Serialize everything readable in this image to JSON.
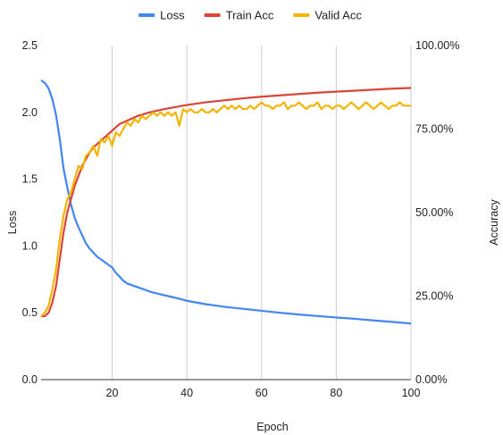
{
  "chart_data": {
    "type": "line",
    "title": "",
    "xlabel": "Epoch",
    "ylabel": "Loss",
    "y2label": "Accuracy",
    "xlim": [
      1,
      100
    ],
    "ylim": [
      0,
      2.5
    ],
    "y2lim": [
      0,
      100
    ],
    "x_ticks": [
      20,
      40,
      60,
      80,
      100
    ],
    "x_tick_labels": [
      "20",
      "40",
      "60",
      "80",
      "100"
    ],
    "y_ticks": [
      0.0,
      0.5,
      1.0,
      1.5,
      2.0,
      2.5
    ],
    "y_tick_labels": [
      "0.0",
      "0.5",
      "1.0",
      "1.5",
      "2.0",
      "2.5"
    ],
    "y2_ticks": [
      0,
      25,
      50,
      75,
      100
    ],
    "y2_tick_labels": [
      "0.00%",
      "25.00%",
      "50.00%",
      "75.00%",
      "100.00%"
    ],
    "grid": "vertical",
    "legend_position": "top",
    "series": [
      {
        "name": "Loss",
        "axis": "left",
        "color": "#4285F4",
        "points": [
          [
            1,
            2.24
          ],
          [
            2,
            2.22
          ],
          [
            3,
            2.18
          ],
          [
            4,
            2.1
          ],
          [
            5,
            1.98
          ],
          [
            6,
            1.8
          ],
          [
            7,
            1.58
          ],
          [
            8,
            1.44
          ],
          [
            9,
            1.31
          ],
          [
            10,
            1.21
          ],
          [
            11,
            1.14
          ],
          [
            12,
            1.08
          ],
          [
            13,
            1.02
          ],
          [
            14,
            0.98
          ],
          [
            15,
            0.95
          ],
          [
            16,
            0.92
          ],
          [
            17,
            0.9
          ],
          [
            18,
            0.88
          ],
          [
            19,
            0.86
          ],
          [
            20,
            0.84
          ],
          [
            21,
            0.8
          ],
          [
            22,
            0.77
          ],
          [
            23,
            0.74
          ],
          [
            24,
            0.72
          ],
          [
            25,
            0.71
          ],
          [
            26,
            0.7
          ],
          [
            27,
            0.69
          ],
          [
            28,
            0.68
          ],
          [
            30,
            0.66
          ],
          [
            32,
            0.645
          ],
          [
            35,
            0.625
          ],
          [
            38,
            0.605
          ],
          [
            40,
            0.59
          ],
          [
            45,
            0.565
          ],
          [
            50,
            0.545
          ],
          [
            55,
            0.53
          ],
          [
            60,
            0.515
          ],
          [
            65,
            0.5
          ],
          [
            70,
            0.487
          ],
          [
            75,
            0.476
          ],
          [
            80,
            0.465
          ],
          [
            85,
            0.455
          ],
          [
            90,
            0.443
          ],
          [
            95,
            0.432
          ],
          [
            100,
            0.42
          ]
        ]
      },
      {
        "name": "Train Acc",
        "axis": "right",
        "color": "#DB4437",
        "points": [
          [
            1,
            19
          ],
          [
            2,
            19
          ],
          [
            3,
            20
          ],
          [
            4,
            23
          ],
          [
            5,
            28
          ],
          [
            6,
            36
          ],
          [
            7,
            44
          ],
          [
            8,
            50
          ],
          [
            9,
            54
          ],
          [
            10,
            58
          ],
          [
            11,
            61
          ],
          [
            12,
            64
          ],
          [
            13,
            66
          ],
          [
            14,
            68
          ],
          [
            15,
            69.5
          ],
          [
            16,
            70.5
          ],
          [
            17,
            71.5
          ],
          [
            18,
            72.5
          ],
          [
            19,
            73.5
          ],
          [
            20,
            74.5
          ],
          [
            21,
            75.5
          ],
          [
            22,
            76.5
          ],
          [
            23,
            77
          ],
          [
            24,
            77.5
          ],
          [
            25,
            78
          ],
          [
            26,
            78.5
          ],
          [
            27,
            79
          ],
          [
            28,
            79.3
          ],
          [
            30,
            80
          ],
          [
            32,
            80.5
          ],
          [
            35,
            81.2
          ],
          [
            38,
            81.8
          ],
          [
            40,
            82.2
          ],
          [
            45,
            83
          ],
          [
            50,
            83.6
          ],
          [
            55,
            84.2
          ],
          [
            60,
            84.7
          ],
          [
            65,
            85.1
          ],
          [
            70,
            85.5
          ],
          [
            75,
            85.9
          ],
          [
            80,
            86.2
          ],
          [
            85,
            86.5
          ],
          [
            90,
            86.8
          ],
          [
            95,
            87.1
          ],
          [
            100,
            87.3
          ]
        ]
      },
      {
        "name": "Valid Acc",
        "axis": "right",
        "color": "#F4B400",
        "points": [
          [
            1,
            19
          ],
          [
            2,
            20
          ],
          [
            3,
            22
          ],
          [
            4,
            27
          ],
          [
            5,
            33
          ],
          [
            6,
            42
          ],
          [
            7,
            49
          ],
          [
            8,
            54
          ],
          [
            9,
            56
          ],
          [
            10,
            60
          ],
          [
            11,
            64
          ],
          [
            12,
            63
          ],
          [
            13,
            67
          ],
          [
            14,
            68
          ],
          [
            15,
            70
          ],
          [
            16,
            67
          ],
          [
            17,
            72
          ],
          [
            18,
            71
          ],
          [
            19,
            73
          ],
          [
            20,
            70
          ],
          [
            21,
            74
          ],
          [
            22,
            73
          ],
          [
            23,
            75
          ],
          [
            24,
            77
          ],
          [
            25,
            76
          ],
          [
            26,
            78
          ],
          [
            27,
            77
          ],
          [
            28,
            79
          ],
          [
            29,
            78
          ],
          [
            30,
            79
          ],
          [
            31,
            80
          ],
          [
            32,
            79
          ],
          [
            33,
            80
          ],
          [
            34,
            79
          ],
          [
            35,
            80
          ],
          [
            36,
            79
          ],
          [
            37,
            80
          ],
          [
            38,
            76
          ],
          [
            39,
            81
          ],
          [
            40,
            80
          ],
          [
            41,
            81
          ],
          [
            42,
            80
          ],
          [
            43,
            80
          ],
          [
            44,
            81
          ],
          [
            45,
            80
          ],
          [
            46,
            80
          ],
          [
            47,
            81
          ],
          [
            48,
            80
          ],
          [
            49,
            81
          ],
          [
            50,
            82
          ],
          [
            51,
            81
          ],
          [
            52,
            82
          ],
          [
            53,
            81
          ],
          [
            54,
            82
          ],
          [
            55,
            81
          ],
          [
            56,
            81
          ],
          [
            57,
            82
          ],
          [
            58,
            81
          ],
          [
            59,
            82
          ],
          [
            60,
            83
          ],
          [
            61,
            82
          ],
          [
            62,
            82
          ],
          [
            63,
            81
          ],
          [
            64,
            82
          ],
          [
            65,
            82
          ],
          [
            66,
            83
          ],
          [
            67,
            81
          ],
          [
            68,
            82
          ],
          [
            69,
            82
          ],
          [
            70,
            83
          ],
          [
            71,
            82
          ],
          [
            72,
            81
          ],
          [
            73,
            82
          ],
          [
            74,
            82
          ],
          [
            75,
            83
          ],
          [
            76,
            81
          ],
          [
            77,
            82
          ],
          [
            78,
            82
          ],
          [
            79,
            81
          ],
          [
            80,
            82
          ],
          [
            81,
            82
          ],
          [
            82,
            81
          ],
          [
            83,
            82
          ],
          [
            84,
            83
          ],
          [
            85,
            82
          ],
          [
            86,
            81
          ],
          [
            87,
            82
          ],
          [
            88,
            83
          ],
          [
            89,
            82
          ],
          [
            90,
            81
          ],
          [
            91,
            82
          ],
          [
            92,
            83
          ],
          [
            93,
            82
          ],
          [
            94,
            81
          ],
          [
            95,
            82
          ],
          [
            96,
            82
          ],
          [
            97,
            83
          ],
          [
            98,
            82
          ],
          [
            99,
            82
          ],
          [
            100,
            82
          ]
        ]
      }
    ]
  }
}
